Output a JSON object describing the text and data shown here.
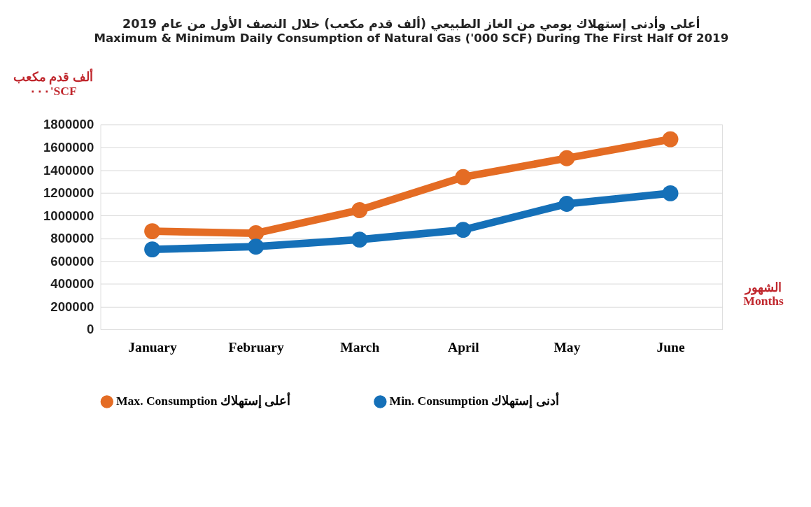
{
  "chart_data": {
    "type": "line",
    "title": "أعلى وأدنى إستهلاك يومي من الغاز الطبيعي (ألف قدم مكعب) خلال النصف الأول من عام 2019",
    "subtitle": "Maximum & Minimum Daily Consumption of Natural Gas ('000 SCF) During The First Half Of 2019",
    "ylabel": "ألف قدم مكعب\n٠٠٠'SCF",
    "xlabel": "الشهور\nMonths",
    "categories": [
      "January",
      "February",
      "March",
      "April",
      "May",
      "June"
    ],
    "series": [
      {
        "name": "Max. Consumption أعلى إستهلاك",
        "color": "#e46c24",
        "values": [
          863000,
          845000,
          1048000,
          1338000,
          1504000,
          1671000
        ]
      },
      {
        "name": "Min. Consumption أدنى إستهلاك",
        "color": "#1570b8",
        "values": [
          703000,
          727000,
          789000,
          875000,
          1103000,
          1196000
        ]
      }
    ],
    "ylim": [
      0,
      1800000
    ],
    "yticks": [
      0,
      200000,
      400000,
      600000,
      800000,
      1000000,
      1200000,
      1400000,
      1600000,
      1800000
    ],
    "grid": "y",
    "legend": "bottom",
    "marker": "circle",
    "line_style": "solid"
  }
}
